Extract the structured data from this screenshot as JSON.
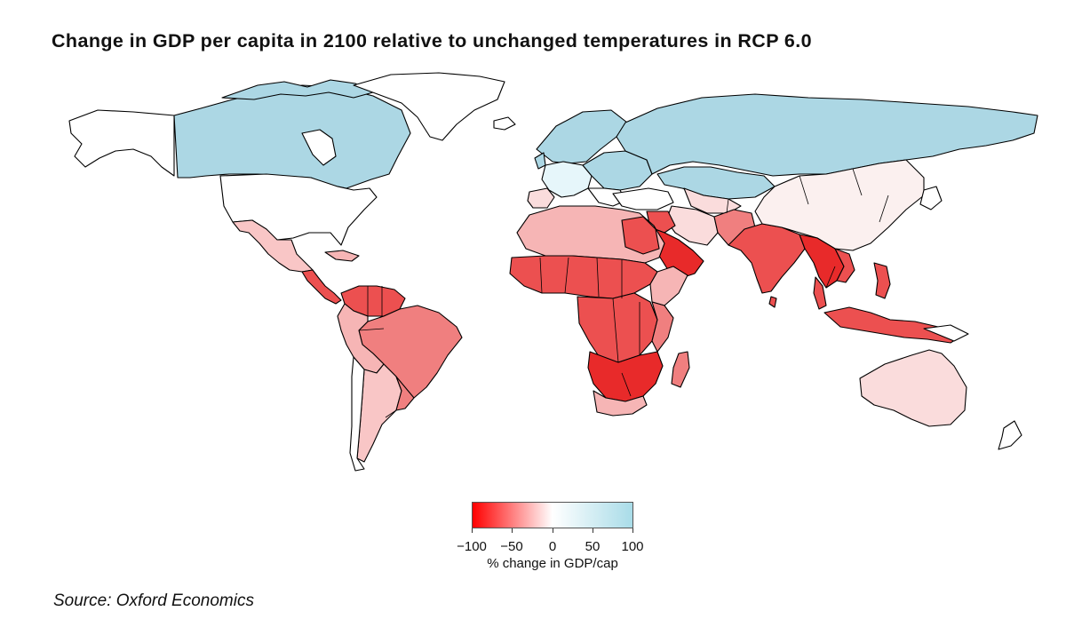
{
  "title": "Change in GDP per capita in 2100 relative to unchanged temperatures in RCP 6.0",
  "source": "Source: Oxford Economics",
  "legend": {
    "title": "% change in GDP/cap",
    "ticks": [
      "−100",
      "−50",
      "0",
      "50",
      "100"
    ],
    "tick_values": [
      -100,
      -50,
      0,
      50,
      100
    ],
    "range": [
      -100,
      100
    ],
    "colors": {
      "low": "#ff0000",
      "mid": "#ffffff",
      "high": "#a9dce8"
    }
  },
  "colors": {
    "blue": "#acd7e4",
    "light_blue": "#e6f6fa",
    "white": "#ffffff",
    "near_white": "#fbf6f5",
    "pale_pink": "#fadcdc",
    "light_red": "#f6b5b5",
    "mid_red": "#f07f7f",
    "red": "#ec5050",
    "deep_red": "#e82a2a",
    "border": "#000000"
  }
}
